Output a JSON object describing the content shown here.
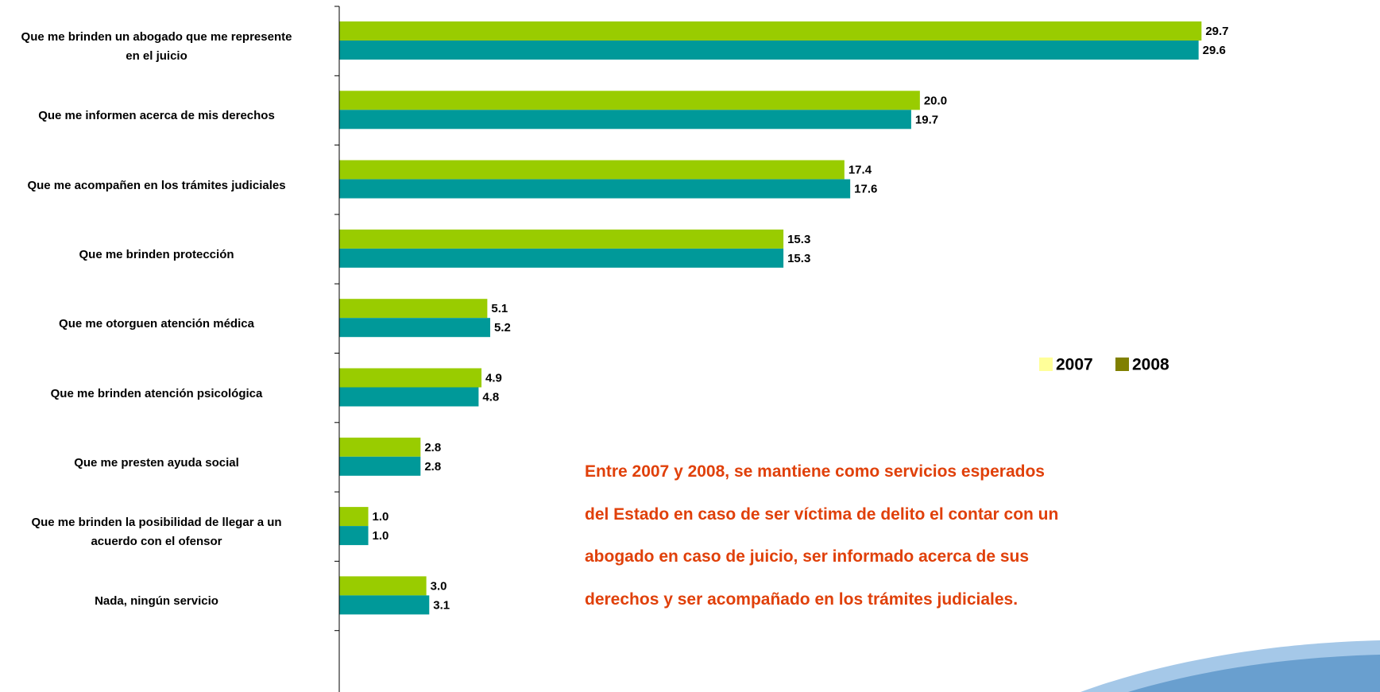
{
  "chart_data": {
    "type": "hbar",
    "categories": [
      "Que me brinden un abogado que me represente\nen el juicio",
      "Que me informen acerca de mis derechos",
      "Que me acompañen en los trámites judiciales",
      "Que me brinden protección",
      "Que me otorguen atención médica",
      "Que me brinden atención psicológica",
      "Que me presten ayuda social",
      "Que me brinden la posibilidad de llegar a un\nacuerdo con el ofensor",
      "Nada, ningún servicio"
    ],
    "series": [
      {
        "name": "2007",
        "color": "#99cc00",
        "legend_color": "#ffff99",
        "values": [
          29.7,
          20.0,
          17.4,
          15.3,
          5.1,
          4.9,
          2.8,
          1.0,
          3.0
        ],
        "value_labels": [
          "29.7",
          "20.0",
          "17.4",
          "15.3",
          "5.1",
          "4.9",
          "2.8",
          "1.0",
          "3.0"
        ]
      },
      {
        "name": "2008",
        "color": "#009999",
        "legend_color": "#808000",
        "values": [
          29.6,
          19.7,
          17.6,
          15.3,
          5.2,
          4.8,
          2.8,
          1.0,
          3.1
        ],
        "value_labels": [
          "29.6",
          "19.7",
          "17.6",
          "15.3",
          "5.2",
          "4.8",
          "2.8",
          "1.0",
          "3.1"
        ]
      }
    ],
    "xlim": [
      0,
      35
    ],
    "annotation": [
      "Entre 2007 y 2008, se mantiene como servicios esperados",
      "del Estado en caso de ser víctima de delito el contar con un",
      "abogado en caso de juicio, ser informado acerca de sus",
      "derechos y ser acompañado en los trámites judiciales."
    ]
  }
}
